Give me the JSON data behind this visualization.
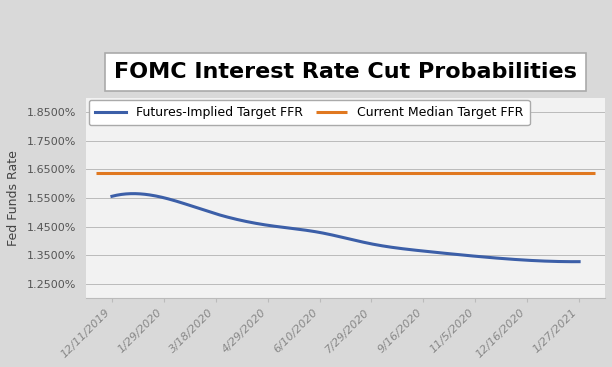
{
  "title": "FOMC Interest Rate Cut Probabilities",
  "ylabel": "Fed Funds Rate",
  "x_labels": [
    "12/11/2019",
    "1/29/2020",
    "3/18/2020",
    "4/29/2020",
    "6/10/2020",
    "7/29/2020",
    "9/16/2020",
    "11/5/2020",
    "12/16/2020",
    "1/27/2021"
  ],
  "futures_values": [
    0.01556,
    0.01551,
    0.01495,
    0.01455,
    0.0143,
    0.0139,
    0.01365,
    0.01347,
    0.01333,
    0.01328
  ],
  "current_median": 0.01638,
  "futures_color": "#3C5FA8",
  "median_color": "#E07820",
  "ylim_min": 0.012,
  "ylim_max": 0.019,
  "yticks": [
    0.0125,
    0.0135,
    0.0145,
    0.0155,
    0.0165,
    0.0175,
    0.0185
  ],
  "legend_futures": "Futures-Implied Target FFR",
  "legend_median": "Current Median Target FFR",
  "bg_color": "#D9D9D9",
  "plot_bg_color": "#F2F2F2",
  "title_fontsize": 16,
  "label_fontsize": 9,
  "tick_fontsize": 8,
  "legend_fontsize": 9,
  "line_width": 2.2
}
